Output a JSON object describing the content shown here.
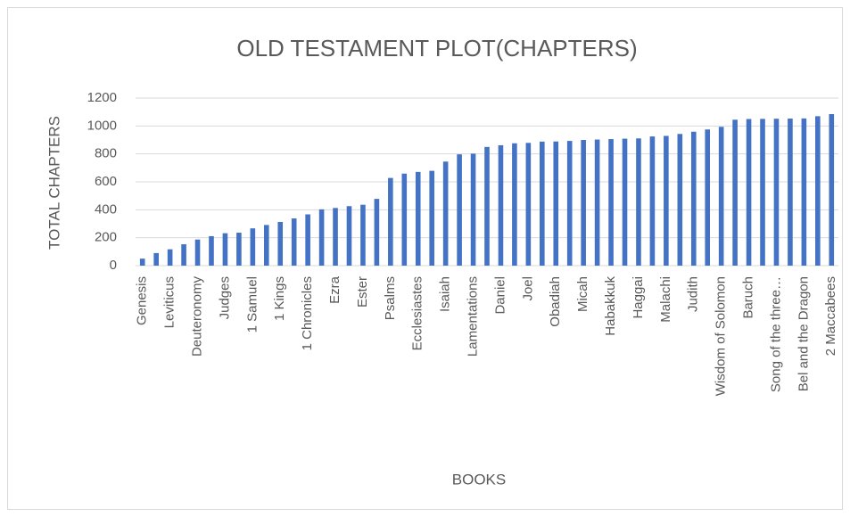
{
  "chart_data": {
    "type": "bar",
    "title": "OLD TESTAMENT PLOT(CHAPTERS)",
    "x_label": "BOOKS",
    "y_label": "TOTAL CHAPTERS",
    "categories": [
      "Genesis",
      null,
      "Leviticus",
      null,
      "Deuteronomy",
      null,
      "Judges",
      null,
      "1 Samuel",
      null,
      "1 Kings",
      null,
      "1 Chronicles",
      null,
      "Ezra",
      null,
      "Ester",
      null,
      "Psalms",
      null,
      "Ecclesiastes",
      null,
      "Isaiah",
      null,
      "Lamentations",
      null,
      "Daniel",
      null,
      "Joel",
      null,
      "Obadiah",
      null,
      "Micah",
      null,
      "Habakkuk",
      null,
      "Haggai",
      null,
      "Malachi",
      null,
      "Judith",
      null,
      "Wisdom of Solomon",
      null,
      "Baruch",
      null,
      "Song of the three…",
      null,
      "Bel and the Dragon",
      null,
      "2 Maccabees"
    ],
    "values": [
      50,
      90,
      117,
      153,
      187,
      211,
      232,
      236,
      267,
      291,
      313,
      338,
      367,
      403,
      413,
      426,
      436,
      478,
      628,
      659,
      671,
      679,
      745,
      797,
      802,
      850,
      862,
      876,
      879,
      888,
      889,
      893,
      900,
      903,
      906,
      909,
      911,
      925,
      929,
      943,
      959,
      975,
      994,
      1045,
      1050,
      1051,
      1052,
      1053,
      1054,
      1070,
      1085
    ],
    "color": "#4472c4",
    "ylim": [
      0,
      1200
    ],
    "yticks": [
      0,
      200,
      400,
      600,
      800,
      1000,
      1200
    ],
    "grid": true
  }
}
